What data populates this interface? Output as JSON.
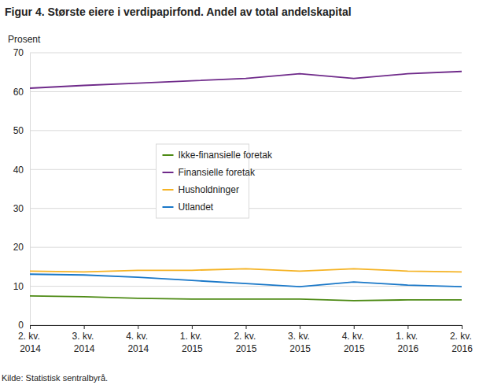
{
  "chart_data": {
    "type": "line",
    "title": "Figur 4. Største eiere i verdipapirfond. Andel av total andelskapital",
    "y_label": "Prosent",
    "source": "Kilde: Statistisk sentralbyrå.",
    "categories": [
      "2. kv. 2014",
      "3. kv. 2014",
      "4. kv. 2014",
      "1. kv. 2015",
      "2. kv. 2015",
      "3. kv. 2015",
      "4. kv. 2015",
      "1. kv. 2016",
      "2. kv. 2016"
    ],
    "series": [
      {
        "name": "Ikke-finansielle foretak",
        "color": "#4d8a14",
        "values": [
          7.5,
          7.3,
          6.9,
          6.7,
          6.7,
          6.7,
          6.3,
          6.5,
          6.5
        ]
      },
      {
        "name": "Finansielle foretak",
        "color": "#6f2a8a",
        "values": [
          60.9,
          61.6,
          62.2,
          62.8,
          63.4,
          64.6,
          63.4,
          64.6,
          65.2
        ]
      },
      {
        "name": "Husholdninger",
        "color": "#f5b324",
        "values": [
          13.9,
          13.7,
          14.1,
          14.1,
          14.5,
          13.9,
          14.5,
          13.9,
          13.7
        ]
      },
      {
        "name": "Utlandet",
        "color": "#1a78c8",
        "values": [
          13.1,
          12.9,
          12.3,
          11.5,
          10.7,
          9.9,
          11.1,
          10.3,
          9.9
        ]
      }
    ],
    "ylim": [
      0,
      70
    ],
    "yticks": [
      0,
      10,
      20,
      30,
      40,
      50,
      60,
      70
    ],
    "grid": true,
    "legend": "center"
  }
}
